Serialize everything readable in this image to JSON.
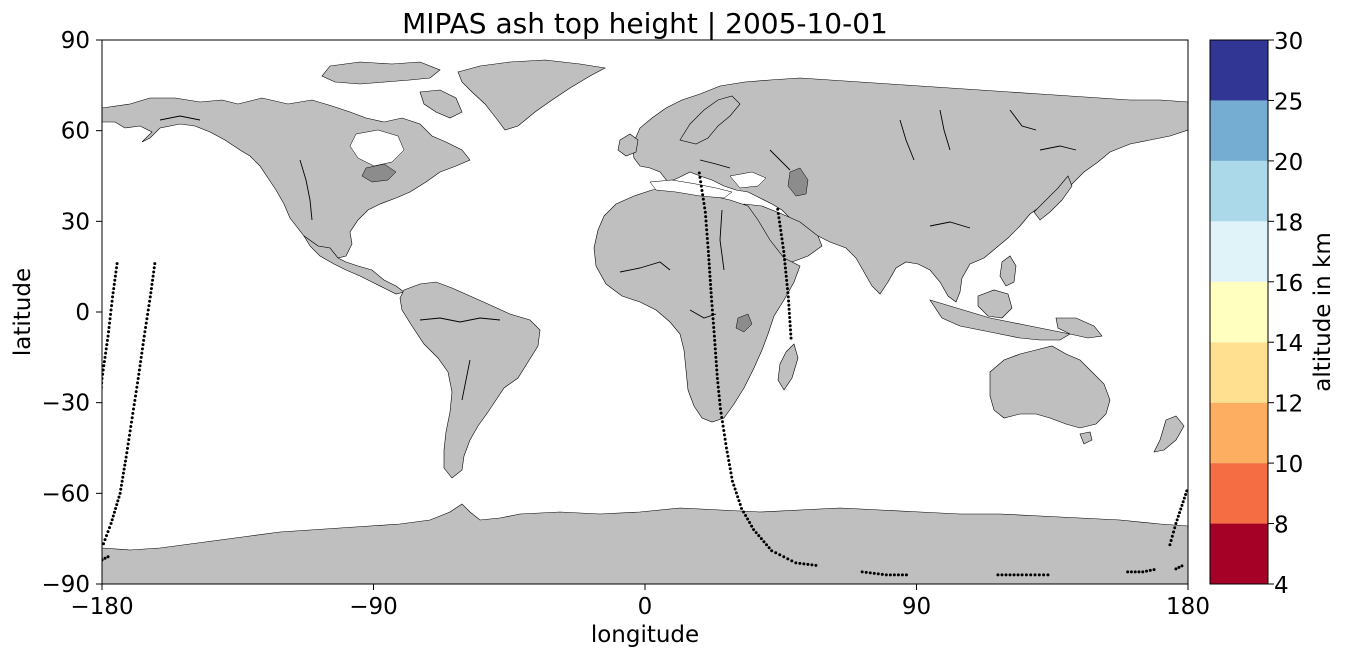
{
  "chart_data": {
    "type": "scatter",
    "title": "MIPAS ash top height | 2005-10-01",
    "xlabel": "longitude",
    "ylabel": "latitude",
    "xlim": [
      -180,
      180
    ],
    "ylim": [
      -90,
      90
    ],
    "x_ticks": [
      "−180",
      "−90",
      "0",
      "90",
      "180"
    ],
    "y_ticks": [
      "90",
      "60",
      "30",
      "0",
      "−30",
      "−60",
      "−90"
    ],
    "x_tick_values": [
      -180,
      -90,
      0,
      90,
      180
    ],
    "y_tick_values": [
      90,
      60,
      30,
      0,
      -30,
      -60,
      -90
    ],
    "colorbar": {
      "label": "altitude in km",
      "bounds": [
        4,
        8,
        10,
        12,
        14,
        16,
        18,
        20,
        25,
        30
      ],
      "tick_labels": [
        "4",
        "8",
        "10",
        "12",
        "14",
        "16",
        "18",
        "20",
        "25",
        "30"
      ],
      "colors": [
        "#a50026",
        "#d73027",
        "#f46d43",
        "#fdae61",
        "#fee090",
        "#ffffbf",
        "#e0f3f8",
        "#abd9e9",
        "#74add1",
        "#4575b4",
        "#313695"
      ]
    },
    "land_color": "#bfbfbf",
    "marker_color": "#000000",
    "tracks": [
      {
        "points": [
          [
            -175,
            16
          ],
          [
            -176.5,
            5
          ],
          [
            -178,
            -8
          ],
          [
            -180,
            -22
          ],
          [
            -181,
            -35
          ],
          [
            -182,
            -50
          ],
          [
            -183,
            -58
          ]
        ]
      },
      {
        "points": [
          [
            -178,
            -81
          ],
          [
            -180,
            -82
          ],
          [
            -182,
            -82
          ]
        ]
      },
      {
        "points": [
          [
            -162.5,
            16
          ],
          [
            -164,
            5
          ],
          [
            -166,
            -8
          ],
          [
            -168,
            -22
          ],
          [
            -170,
            -35
          ],
          [
            -172,
            -48
          ],
          [
            -174,
            -60
          ],
          [
            -177,
            -70
          ],
          [
            -180,
            -78
          ]
        ]
      },
      {
        "points": [
          [
            18,
            46
          ],
          [
            20,
            33
          ],
          [
            21,
            20
          ],
          [
            22,
            5
          ],
          [
            23,
            -8
          ],
          [
            24,
            -22
          ],
          [
            25,
            -32
          ],
          [
            27,
            -45
          ],
          [
            29,
            -56
          ],
          [
            32,
            -65
          ],
          [
            36,
            -72
          ],
          [
            42,
            -79
          ],
          [
            50,
            -83
          ],
          [
            58,
            -84
          ]
        ]
      },
      {
        "points": [
          [
            44,
            34
          ],
          [
            46,
            20
          ],
          [
            47.5,
            5
          ],
          [
            48.5,
            -10
          ]
        ]
      },
      {
        "points": [
          [
            72,
            -86
          ],
          [
            80,
            -87
          ],
          [
            88,
            -87
          ]
        ]
      },
      {
        "points": [
          [
            117,
            -87
          ],
          [
            125,
            -87
          ],
          [
            135,
            -87
          ]
        ]
      },
      {
        "points": [
          [
            160,
            -86
          ],
          [
            165,
            -86
          ],
          [
            170,
            -85
          ]
        ]
      },
      {
        "points": [
          [
            174,
            -77
          ],
          [
            176,
            -70
          ],
          [
            178,
            -64
          ],
          [
            180,
            -58
          ]
        ]
      },
      {
        "points": [
          [
            176,
            -85
          ],
          [
            178,
            -84
          ],
          [
            180,
            -84
          ]
        ]
      }
    ]
  }
}
